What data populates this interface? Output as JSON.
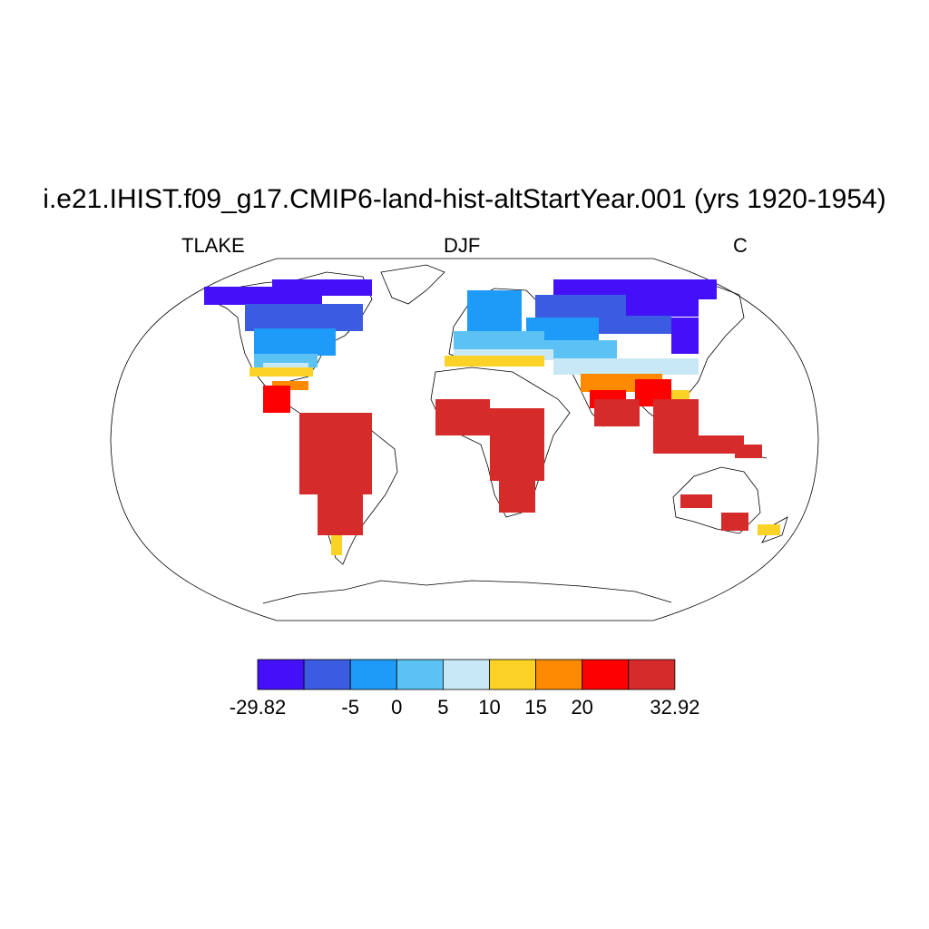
{
  "title": "i.e21.IHIST.f09_g17.CMIP6-land-hist-altStartYear.001 (yrs 1920-1954)",
  "left_label": "TLAKE",
  "center_label": "DJF",
  "right_label": "C",
  "colorbar": {
    "colors": [
      "#4410f8",
      "#3b5be0",
      "#1e9bf8",
      "#5cc2f4",
      "#c8e8f6",
      "#fdd227",
      "#fd8a00",
      "#fd0000",
      "#d52b2b"
    ],
    "tick_labels": [
      "-29.82",
      "-5",
      "0",
      "5",
      "10",
      "15",
      "20",
      "32.92"
    ]
  }
}
